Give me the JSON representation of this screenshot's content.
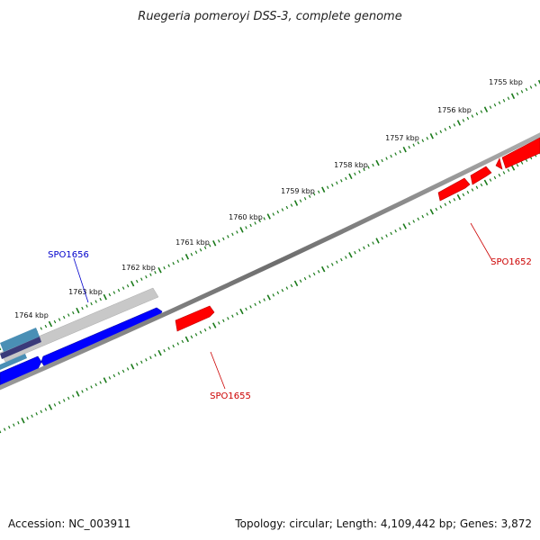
{
  "title": "Ruegeria pomeroyi DSS-3, complete genome",
  "footer": {
    "accession": "Accession: NC_003911",
    "summary": "Topology: circular; Length: 4,109,442 bp; Genes: 3,872"
  },
  "ruler": {
    "color": "#1a7a1a",
    "labels": [
      "1755 kbp",
      "1756 kbp",
      "1757 kbp",
      "1758 kbp",
      "1759 kbp",
      "1760 kbp",
      "1761 kbp",
      "1762 kbp",
      "1763 kbp",
      "1764 kbp"
    ]
  },
  "genes": {
    "SPO1656": {
      "label": "SPO1656",
      "color": "#0000cc"
    },
    "SPO1655": {
      "label": "SPO1655",
      "color": "#cc0000"
    },
    "SPO1652": {
      "label": "SPO1652",
      "color": "#cc0000"
    }
  },
  "colors": {
    "forward_strand": "#ff0000",
    "reverse_strand": "#0000ff",
    "backbone": "#808080",
    "highlight_band": "#c8c8c8"
  }
}
